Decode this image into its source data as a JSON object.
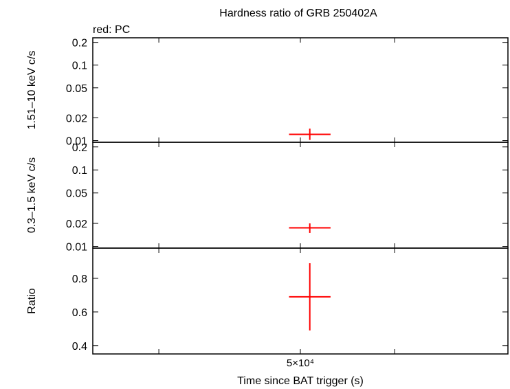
{
  "chart_data": {
    "type": "scatter",
    "title": "Hardness ratio of GRB 250402A",
    "subtitle": "red: PC",
    "xlabel": "Time since BAT trigger (s)",
    "x_ticks": [
      {
        "value": 35000,
        "label": ""
      },
      {
        "value": 50000,
        "label": "5×10⁴"
      },
      {
        "value": 60000,
        "label": ""
      }
    ],
    "xlim": [
      28000,
      72000
    ],
    "series_color": "#ff0000",
    "panels": [
      {
        "id": "hard",
        "ylabel": "1.51–10 keV c/s",
        "scale": "log",
        "ylim": [
          0.0095,
          0.23
        ],
        "yticks": [
          0.01,
          0.02,
          0.05,
          0.1,
          0.2
        ],
        "yticklabels": [
          "0.01",
          "0.02",
          "0.05",
          "0.1",
          "0.2"
        ],
        "points": [
          {
            "x": 51000,
            "xerr": 2200,
            "y": 0.0121,
            "yerr_lo": 0.0019,
            "yerr_hi": 0.0023
          }
        ]
      },
      {
        "id": "soft",
        "ylabel": "0.3–1.5 keV c/s",
        "scale": "log",
        "ylim": [
          0.0095,
          0.23
        ],
        "yticks": [
          0.01,
          0.02,
          0.05,
          0.1,
          0.2
        ],
        "yticklabels": [
          "0.01",
          "0.02",
          "0.05",
          "0.1",
          "0.2"
        ],
        "points": [
          {
            "x": 51000,
            "xerr": 2200,
            "y": 0.0175,
            "yerr_lo": 0.0025,
            "yerr_hi": 0.0025
          }
        ]
      },
      {
        "id": "ratio",
        "ylabel": "Ratio",
        "scale": "linear",
        "ylim": [
          0.35,
          0.98
        ],
        "yticks": [
          0.4,
          0.6,
          0.8
        ],
        "yticklabels": [
          "0.4",
          "0.6",
          "0.8"
        ],
        "points": [
          {
            "x": 51000,
            "xerr": 2200,
            "y": 0.69,
            "yerr_lo": 0.2,
            "yerr_hi": 0.2
          }
        ]
      }
    ]
  }
}
